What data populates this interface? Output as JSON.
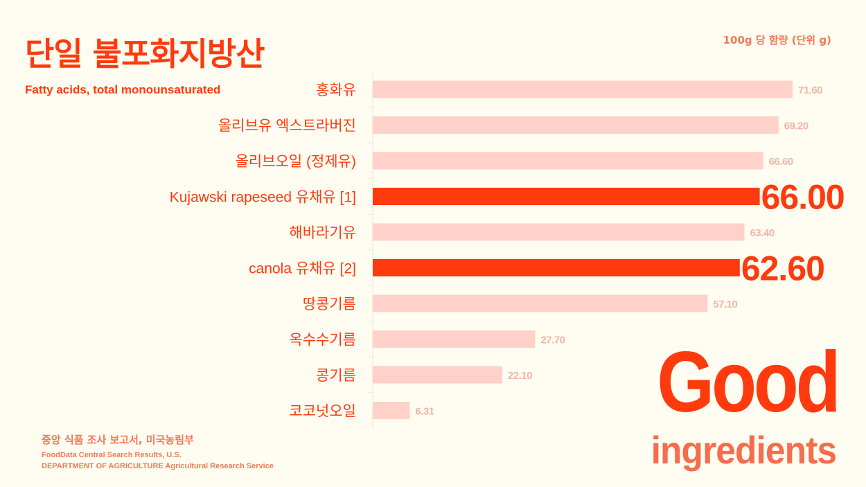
{
  "header": {
    "title": "단일 불포화지방산",
    "subtitle": "Fatty acids, total monounsaturated",
    "unit": "100g 당 함량 (단위 g)"
  },
  "footer": {
    "source_ko": "중앙 식품 조사 보고서, 미국농림부",
    "source_en_1": "FoodData Central Search Results, U.S.",
    "source_en_2": "DEPARTMENT OF AGRICULTURE Agricultural Research Service"
  },
  "badge": {
    "good": "Good",
    "ingredients": "ingredients"
  },
  "colors": {
    "highlight": "#ff3a0e",
    "normal_bar": "#ffd1c8",
    "background": "#fffdf1"
  },
  "chart_data": {
    "type": "bar",
    "orientation": "horizontal",
    "categories": [
      "홍화유",
      "올리브유 엑스트라버진",
      "올리브오일 (정제유)",
      "Kujawski rapeseed 유채유 [1]",
      "해바라기유",
      "canola 유채유 [2]",
      "땅콩기름",
      "옥수수기름",
      "콩기름",
      "코코넛오일"
    ],
    "values": [
      71.6,
      69.2,
      66.6,
      66.0,
      63.4,
      62.6,
      57.1,
      27.7,
      22.1,
      6.31
    ],
    "value_labels": [
      "71.60",
      "69.20",
      "66.60",
      "66.00",
      "63.40",
      "62.60",
      "57.10",
      "27.70",
      "22.10",
      "6.31"
    ],
    "highlighted": [
      false,
      false,
      false,
      true,
      false,
      true,
      false,
      false,
      false,
      false
    ],
    "xlim": [
      0,
      75
    ],
    "grid": false
  }
}
